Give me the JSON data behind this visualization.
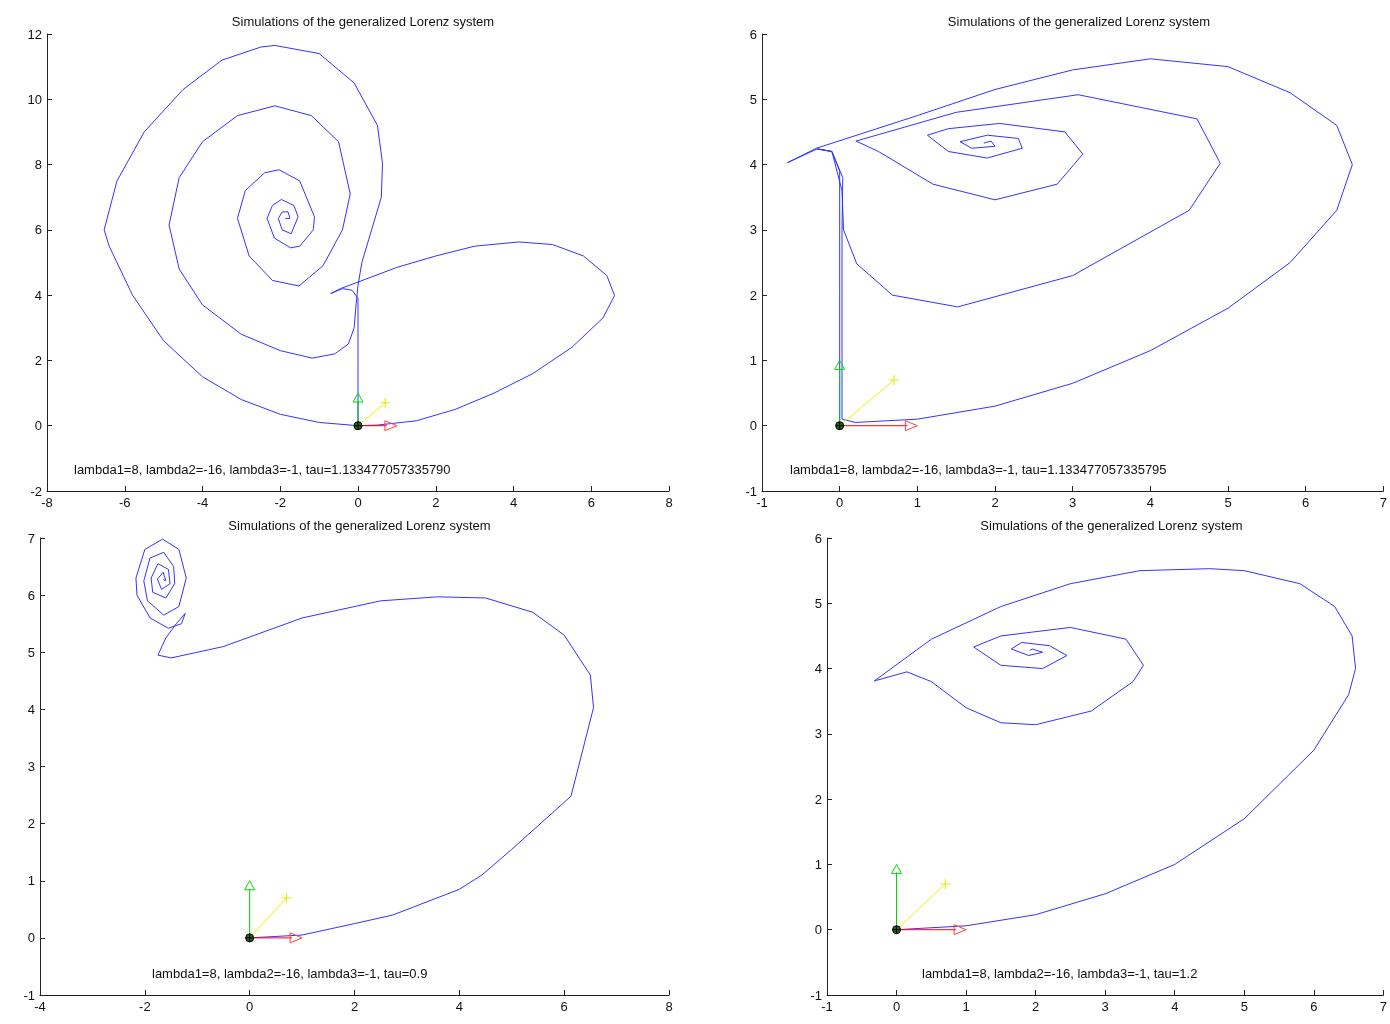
{
  "chart_data": [
    {
      "type": "line",
      "title": "Simulations of the generalized Lorenz system",
      "annotations": [
        "lambda1=8, lambda2=-16, lambda3=-1, tau=1.133477057335790"
      ],
      "color": "#3333ff",
      "x": [
        0,
        0,
        0,
        -0.15,
        -0.4,
        -0.7,
        -0.45,
        0,
        1,
        2,
        3,
        4.14,
        5,
        5.8,
        6.4,
        6.6,
        6.3,
        5.5,
        4.5,
        3.5,
        2.5,
        1.5,
        0.5,
        0,
        -1,
        -2,
        -3,
        -4,
        -5,
        -5.8,
        -6.4,
        -6.53,
        -6.2,
        -5.5,
        -4.5,
        -3.5,
        -2.5,
        -2.14,
        -1,
        -0.1,
        0.5,
        0.63,
        0.6,
        0.35,
        0.1,
        0,
        -0.05,
        -0.1,
        -0.25,
        -0.6,
        -1.18,
        -2,
        -3,
        -4,
        -4.6,
        -4.86,
        -4.6,
        -4,
        -3.1,
        -2.14,
        -1.2,
        -0.5,
        -0.2,
        -0.4,
        -0.9,
        -1.52,
        -2.2,
        -2.8,
        -3.1,
        -2.9,
        -2.4,
        -2.03,
        -1.5,
        -1.12,
        -1.15,
        -1.5,
        -1.74,
        -2.15,
        -2.34,
        -2.2,
        -1.97,
        -1.65,
        -1.54,
        -1.72,
        -1.95,
        -2.05,
        -1.95,
        -1.8,
        -1.75,
        -1.86
      ],
      "values": [
        0,
        2,
        3.9,
        4.15,
        4.2,
        4.05,
        4.2,
        4.4,
        4.85,
        5.2,
        5.5,
        5.63,
        5.55,
        5.2,
        4.6,
        3.99,
        3.3,
        2.4,
        1.6,
        1.0,
        0.5,
        0.15,
        0.02,
        0,
        0.1,
        0.35,
        0.8,
        1.5,
        2.6,
        4,
        5.5,
        6.0,
        7.5,
        9,
        10.3,
        11.2,
        11.6,
        11.65,
        11.4,
        10.5,
        9.2,
        8.04,
        7,
        6,
        5,
        4.3,
        3.7,
        3,
        2.5,
        2.2,
        2.07,
        2.3,
        2.8,
        3.7,
        4.8,
        6.15,
        7.6,
        8.7,
        9.5,
        9.8,
        9.5,
        8.7,
        7.1,
        6,
        4.9,
        4.28,
        4.45,
        5.2,
        6.35,
        7.2,
        7.75,
        7.84,
        7.5,
        6.4,
        6.0,
        5.5,
        5.45,
        5.75,
        6.35,
        6.75,
        6.93,
        6.75,
        6.4,
        5.88,
        6.0,
        6.35,
        6.55,
        6.55,
        6.35,
        6.35
      ],
      "xlim": [
        -8,
        8
      ],
      "xticks": [
        -8,
        -6,
        -4,
        -2,
        0,
        2,
        4,
        6,
        8
      ],
      "ylim": [
        -2,
        12
      ],
      "yticks": [
        -2,
        0,
        2,
        4,
        6,
        8,
        10,
        12
      ]
    },
    {
      "type": "line",
      "title": "Simulations of the generalized Lorenz system",
      "annotations": [
        "lambda1=8, lambda2=-16, lambda3=-1, tau=1.133477057335795"
      ],
      "color": "#3333ff",
      "x": [
        0,
        0,
        0,
        -0.1,
        -0.29,
        -0.67,
        -0.3,
        1,
        2,
        3,
        4,
        5,
        5.8,
        6.4,
        6.6,
        6.4,
        5.8,
        5,
        4,
        3,
        2,
        1,
        0.2,
        0.03,
        0.03,
        0.04,
        -0.1,
        -0.29,
        -0.1,
        0.03,
        0.05,
        0.22,
        0.68,
        1.52,
        3,
        4.5,
        4.9,
        4.6,
        3.07,
        1.5,
        0.21,
        0.5,
        1.2,
        2,
        2.8,
        3.13,
        2.9,
        2.06,
        1.4,
        1.13,
        1.4,
        1.9,
        2.35,
        2.3,
        1.9,
        1.55,
        1.7,
        2,
        1.95,
        1.86
      ],
      "values": [
        0,
        2,
        3.9,
        4.2,
        4.24,
        4.03,
        4.25,
        4.75,
        5.15,
        5.45,
        5.62,
        5.5,
        5.1,
        4.6,
        4.0,
        3.3,
        2.5,
        1.8,
        1.15,
        0.65,
        0.3,
        0.1,
        0.05,
        0.1,
        3,
        3.8,
        4.2,
        4.24,
        4.2,
        3.6,
        3,
        2.48,
        2.0,
        1.82,
        2.3,
        3.3,
        4.02,
        4.7,
        5.07,
        4.8,
        4.36,
        4.2,
        3.7,
        3.46,
        3.7,
        4.16,
        4.5,
        4.63,
        4.55,
        4.45,
        4.2,
        4.1,
        4.25,
        4.4,
        4.45,
        4.35,
        4.25,
        4.28,
        4.36,
        4.33
      ],
      "xlim": [
        -1,
        7
      ],
      "xticks": [
        -1,
        0,
        1,
        2,
        3,
        4,
        5,
        6,
        7
      ],
      "ylim": [
        -1,
        6
      ],
      "yticks": [
        -1,
        0,
        1,
        2,
        3,
        4,
        5,
        6
      ]
    },
    {
      "type": "line",
      "title": "Simulations of the generalized Lorenz system",
      "annotations": [
        "lambda1=8, lambda2=-16, lambda3=-1, tau=0.9"
      ],
      "color": "#3333ff",
      "x": [
        0,
        1,
        2,
        2.73,
        4,
        4.43,
        5,
        6.13,
        6.56,
        6.5,
        6,
        5.4,
        4.5,
        3.58,
        2.5,
        1,
        -0.5,
        -1.5,
        -1.75,
        -1.6,
        -1.4,
        -1.23,
        -1.3,
        -1.55,
        -1.9,
        -2.15,
        -2.17,
        -2,
        -1.66,
        -1.35,
        -1.21,
        -1.35,
        -1.64,
        -1.95,
        -2.02,
        -1.9,
        -1.64,
        -1.45,
        -1.43,
        -1.6,
        -1.85,
        -1.88,
        -1.75,
        -1.55,
        -1.52,
        -1.68,
        -1.76,
        -1.65,
        -1.6,
        -1.64
      ],
      "values": [
        0,
        0.05,
        0.25,
        0.4,
        0.85,
        1.1,
        1.55,
        2.48,
        4.03,
        4.6,
        5.3,
        5.7,
        5.95,
        5.97,
        5.9,
        5.6,
        5.1,
        4.9,
        4.95,
        5.25,
        5.5,
        5.68,
        5.5,
        5.42,
        5.6,
        6.0,
        6.3,
        6.8,
        6.98,
        6.8,
        6.3,
        5.8,
        5.65,
        5.9,
        6.25,
        6.65,
        6.75,
        6.5,
        6.2,
        5.95,
        6.05,
        6.3,
        6.55,
        6.45,
        6.2,
        6.1,
        6.28,
        6.4,
        6.25,
        6.27
      ],
      "xlim": [
        -4,
        8
      ],
      "xticks": [
        -4,
        -2,
        0,
        2,
        4,
        6,
        8
      ],
      "ylim": [
        -1,
        7
      ],
      "yticks": [
        -1,
        0,
        1,
        2,
        3,
        4,
        5,
        6,
        7
      ]
    },
    {
      "type": "line",
      "title": "Simulations of the generalized Lorenz system",
      "annotations": [
        "lambda1=8, lambda2=-16, lambda3=-1, tau=1.2"
      ],
      "color": "#3333ff",
      "x": [
        0,
        1,
        2,
        3,
        4,
        5,
        6,
        6.5,
        6.6,
        6.55,
        6.3,
        5.8,
        5,
        4.5,
        3.5,
        2.5,
        1.5,
        0.5,
        -0.32,
        0.15,
        0.5,
        1,
        1.5,
        2,
        2.8,
        3.4,
        3.55,
        3.3,
        2.5,
        1.5,
        1.11,
        1.5,
        2.1,
        2.45,
        2.2,
        1.8,
        1.65,
        1.9,
        2.1,
        1.95,
        1.92
      ],
      "values": [
        0,
        0.06,
        0.23,
        0.55,
        1.0,
        1.7,
        2.75,
        3.6,
        4.0,
        4.5,
        4.95,
        5.3,
        5.5,
        5.53,
        5.5,
        5.3,
        4.95,
        4.45,
        3.81,
        3.95,
        3.8,
        3.4,
        3.17,
        3.14,
        3.35,
        3.8,
        4.05,
        4.45,
        4.63,
        4.5,
        4.33,
        4.05,
        4.0,
        4.2,
        4.35,
        4.4,
        4.3,
        4.2,
        4.25,
        4.3,
        4.28
      ],
      "xlim": [
        -1,
        7
      ],
      "xticks": [
        -1,
        0,
        1,
        2,
        3,
        4,
        5,
        6,
        7
      ],
      "ylim": [
        -1,
        6
      ],
      "yticks": [
        -1,
        0,
        1,
        2,
        3,
        4,
        5,
        6
      ]
    }
  ]
}
